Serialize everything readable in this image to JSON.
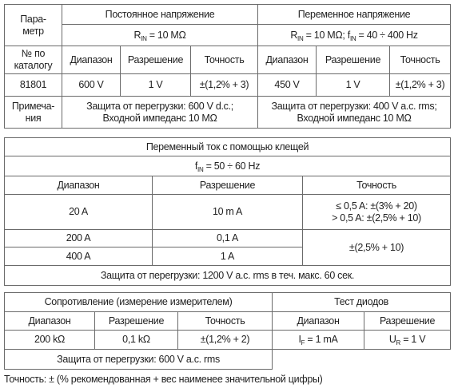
{
  "table1": {
    "parameter": [
      "Пара-",
      "метр"
    ],
    "dc": {
      "title": "Постоянное напряжение",
      "condition": [
        "R",
        "IN",
        " = 10 MΩ"
      ]
    },
    "ac": {
      "title": "Переменное напряжение",
      "condition": [
        "R",
        "IN",
        " = 10 MΩ; f",
        "IN",
        " = 40 ÷ 400 Hz"
      ]
    },
    "catalog_label": [
      "№ по",
      "каталогу"
    ],
    "columns": [
      "Диапазон",
      "Разрешение",
      "Точность",
      "Диапазон",
      "Разрешение",
      "Точность"
    ],
    "row": [
      "81801",
      "600 V",
      "1 V",
      "±(1,2% + 3)",
      "450 V",
      "1 V",
      "±(1,2% + 3)"
    ],
    "notes_label": [
      "Примеча-",
      "ния"
    ],
    "dc_note": [
      "Защита от перегрузки: 600 V d.c.;",
      "Входной импеданс 10 MΩ"
    ],
    "ac_note": [
      "Защита от перегрузки: 400 V a.c. rms;",
      "Входной импеданс 10 MΩ"
    ]
  },
  "table2": {
    "title": "Переменный ток с помощью клещей",
    "condition": [
      "f",
      "IN",
      " = 50 ÷ 60 Hz"
    ],
    "columns": [
      "Диапазон",
      "Разрешение",
      "Точность"
    ],
    "rows": [
      [
        "20 A",
        "10 m A",
        [
          "≤ 0,5 A: ±(3% + 20)",
          "> 0,5 A: ±(2,5% + 10)"
        ]
      ],
      [
        "200 A",
        "0,1 A"
      ],
      [
        "400 A",
        "1 A"
      ]
    ],
    "shared_accuracy": "±(2,5% + 10)",
    "note": "Защита от перегрузки: 1200 V a.c. rms в теч. макс. 60 сек."
  },
  "table3": {
    "resistance": {
      "title": "Сопротивление (измерение измерителем)",
      "columns": [
        "Диапазон",
        "Разрешение",
        "Точность"
      ],
      "row": [
        "200 kΩ",
        "0,1 kΩ",
        "±(1,2% + 2)"
      ],
      "note": "Защита от перегрузки: 600 V a.c. rms"
    },
    "diode": {
      "title": "Тест диодов",
      "columns": [
        "Диапазон",
        "Разрешение"
      ],
      "row": [
        [
          "I",
          "F",
          " = 1 mA"
        ],
        [
          "U",
          "R",
          " = 1 V"
        ]
      ]
    }
  },
  "footnote": "Точность: ± (% рекомендованная + вес наименее значительной цифры)"
}
